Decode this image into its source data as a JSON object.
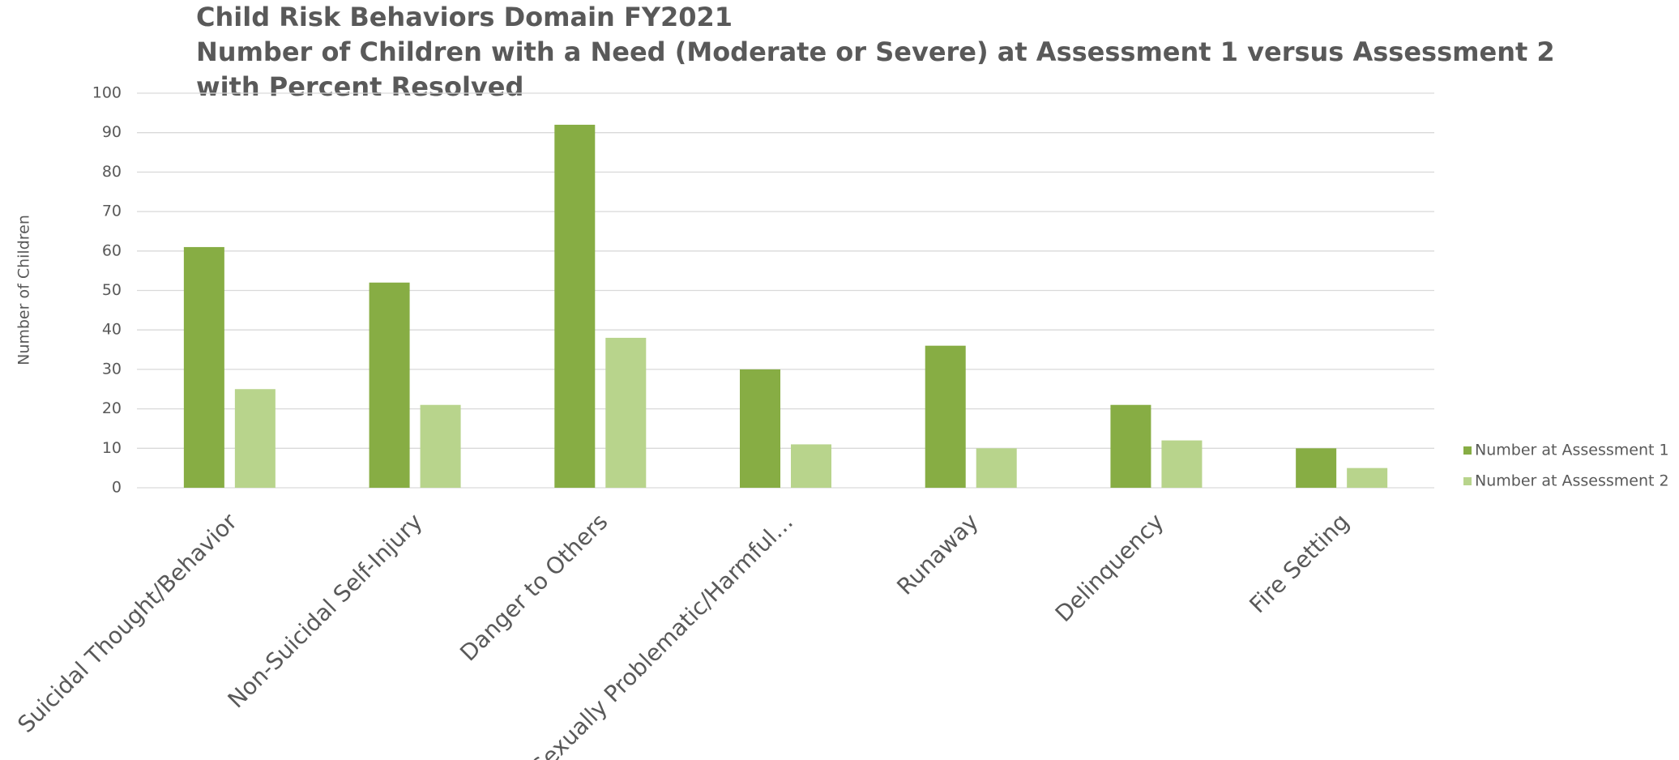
{
  "chart_data": {
    "type": "bar",
    "title": [
      "Child Risk Behaviors Domain FY2021",
      "Number of Children with a Need (Moderate or Severe) at Assessment 1 versus Assessment 2",
      "with Percent Resolved"
    ],
    "y_label": "Number of Children",
    "categories": [
      "Suicidal Thought/Behavior",
      "Non-Suicidal Self-Injury",
      "Danger to Others",
      "Sexually Problematic/Harmful…",
      "Runaway",
      "Delinquency",
      "Fire Setting"
    ],
    "series": [
      {
        "name": "Number at Assessment 1",
        "color": "#87ad44",
        "values": [
          61,
          52,
          92,
          30,
          36,
          21,
          10
        ]
      },
      {
        "name": "Number at Assessment 2",
        "color": "#b8d48c",
        "values": [
          25,
          21,
          38,
          11,
          10,
          12,
          5
        ]
      }
    ],
    "ylim": [
      0,
      100
    ],
    "yticks": [
      0,
      10,
      20,
      30,
      40,
      50,
      60,
      70,
      80,
      90,
      100
    ],
    "grid": true,
    "legend": "right"
  }
}
